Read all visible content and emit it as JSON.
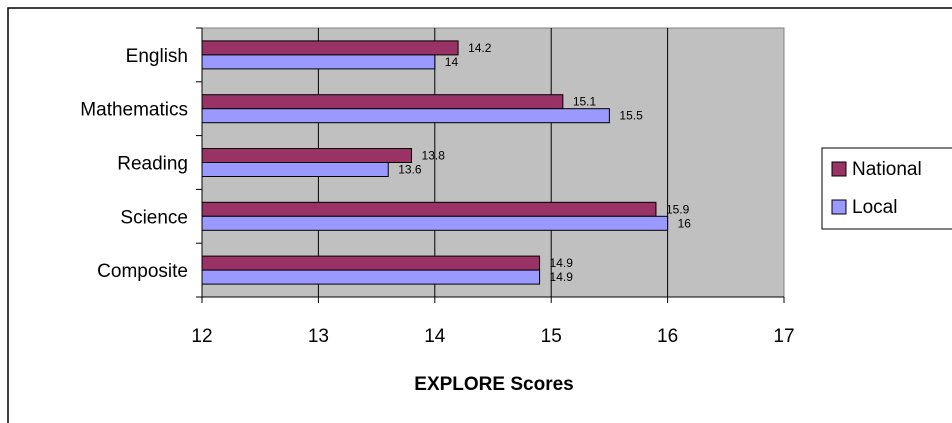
{
  "chart_data": {
    "type": "bar",
    "orientation": "horizontal",
    "categories": [
      "English",
      "Mathematics",
      "Reading",
      "Science",
      "Composite"
    ],
    "series": [
      {
        "name": "National",
        "values": [
          14.2,
          15.1,
          13.8,
          15.9,
          14.9
        ],
        "color": "#993366"
      },
      {
        "name": "Local",
        "values": [
          14,
          15.5,
          13.6,
          16,
          14.9
        ],
        "color": "#9999ff"
      }
    ],
    "data_labels": {
      "National": [
        "14.2",
        "15.1",
        "13.8",
        "15.9",
        "14.9"
      ],
      "Local": [
        "14",
        "15.5",
        "13.6",
        "16",
        "14.9"
      ]
    },
    "xlabel": "EXPLORE Scores",
    "xlim": [
      12,
      17
    ],
    "x_ticks": [
      "12",
      "13",
      "14",
      "15",
      "16",
      "17"
    ],
    "grid": "vertical",
    "plot_background": "#c0c0c0",
    "legend_position": "right"
  }
}
